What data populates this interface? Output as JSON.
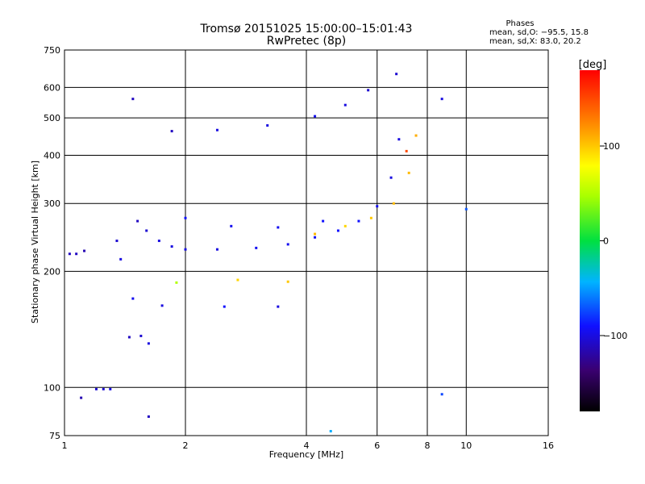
{
  "chart_data": {
    "type": "scatter",
    "title": "Tromsø 20151025 15:00:00–15:01:43",
    "subtitle": "RwPretec (8p)",
    "xlabel": "Frequency [MHz]",
    "ylabel": "Stationary phase Virtual Height [km]",
    "x_scale": "log",
    "y_scale": "log",
    "xlim": [
      1,
      16
    ],
    "ylim": [
      75,
      750
    ],
    "x_ticks": [
      1,
      2,
      4,
      6,
      8,
      10,
      16
    ],
    "x_tick_labels": [
      "1",
      "2",
      "4",
      "6",
      "8",
      "10",
      "16"
    ],
    "x_gridlines": [
      2,
      4,
      6,
      8,
      10
    ],
    "y_ticks": [
      75,
      100,
      200,
      300,
      400,
      500,
      600,
      750
    ],
    "y_tick_labels": [
      "75",
      "100",
      "200",
      "300",
      "400",
      "500",
      "600",
      "750"
    ],
    "y_gridlines": [
      100,
      200,
      300,
      400,
      500,
      600
    ],
    "grid": true,
    "stats": {
      "heading": "Phases",
      "line_o": "mean, sd,O: −95.5, 15.8",
      "line_x": "mean, sd,X:  83.0, 20.2"
    },
    "colorbar": {
      "label": "[deg]",
      "range": [
        -180,
        180
      ],
      "ticks": [
        100,
        0,
        -100
      ],
      "tick_labels": [
        "100",
        "0",
        "−100"
      ],
      "colormap": "rainbow"
    },
    "series": [
      {
        "values": [
          {
            "x": 1.03,
            "y": 222,
            "p": -110
          },
          {
            "x": 1.07,
            "y": 222,
            "p": -110
          },
          {
            "x": 1.12,
            "y": 226,
            "p": -115
          },
          {
            "x": 1.2,
            "y": 99,
            "p": -105
          },
          {
            "x": 1.25,
            "y": 99,
            "p": -105
          },
          {
            "x": 1.3,
            "y": 99,
            "p": -100
          },
          {
            "x": 1.35,
            "y": 240,
            "p": -105
          },
          {
            "x": 1.38,
            "y": 215,
            "p": -100
          },
          {
            "x": 1.45,
            "y": 135,
            "p": -110
          },
          {
            "x": 1.55,
            "y": 136,
            "p": -105
          },
          {
            "x": 1.62,
            "y": 130,
            "p": -100
          },
          {
            "x": 1.48,
            "y": 170,
            "p": -95
          },
          {
            "x": 1.52,
            "y": 270,
            "p": -110
          },
          {
            "x": 1.6,
            "y": 255,
            "p": -105
          },
          {
            "x": 1.72,
            "y": 240,
            "p": -100
          },
          {
            "x": 1.85,
            "y": 232,
            "p": -100
          },
          {
            "x": 2.0,
            "y": 228,
            "p": -98
          },
          {
            "x": 2.4,
            "y": 228,
            "p": -100
          },
          {
            "x": 3.0,
            "y": 230,
            "p": -95
          },
          {
            "x": 3.6,
            "y": 235,
            "p": -95
          },
          {
            "x": 4.2,
            "y": 245,
            "p": -95
          },
          {
            "x": 4.8,
            "y": 255,
            "p": -90
          },
          {
            "x": 5.4,
            "y": 270,
            "p": -90
          },
          {
            "x": 6.0,
            "y": 295,
            "p": -95
          },
          {
            "x": 6.5,
            "y": 350,
            "p": -100
          },
          {
            "x": 6.8,
            "y": 440,
            "p": -100
          },
          {
            "x": 2.0,
            "y": 275,
            "p": -90
          },
          {
            "x": 2.6,
            "y": 262,
            "p": -95
          },
          {
            "x": 3.4,
            "y": 260,
            "p": -95
          },
          {
            "x": 4.4,
            "y": 270,
            "p": -90
          },
          {
            "x": 1.85,
            "y": 462,
            "p": -110
          },
          {
            "x": 2.4,
            "y": 465,
            "p": -100
          },
          {
            "x": 3.2,
            "y": 478,
            "p": -100
          },
          {
            "x": 4.2,
            "y": 505,
            "p": -95
          },
          {
            "x": 5.0,
            "y": 540,
            "p": -100
          },
          {
            "x": 5.7,
            "y": 590,
            "p": -105
          },
          {
            "x": 1.75,
            "y": 163,
            "p": -100
          },
          {
            "x": 2.5,
            "y": 162,
            "p": -90
          },
          {
            "x": 3.4,
            "y": 162,
            "p": -100
          },
          {
            "x": 1.9,
            "y": 187,
            "p": 50
          },
          {
            "x": 2.7,
            "y": 190,
            "p": 95
          },
          {
            "x": 3.6,
            "y": 188,
            "p": 100
          },
          {
            "x": 4.2,
            "y": 250,
            "p": 105
          },
          {
            "x": 5.0,
            "y": 262,
            "p": 95
          },
          {
            "x": 5.8,
            "y": 275,
            "p": 100
          },
          {
            "x": 6.6,
            "y": 300,
            "p": 105
          },
          {
            "x": 7.2,
            "y": 360,
            "p": 105
          },
          {
            "x": 7.5,
            "y": 450,
            "p": 110
          },
          {
            "x": 7.1,
            "y": 410,
            "p": 150
          },
          {
            "x": 1.48,
            "y": 560,
            "p": -110
          },
          {
            "x": 6.7,
            "y": 650,
            "p": -105
          },
          {
            "x": 8.7,
            "y": 560,
            "p": -100
          },
          {
            "x": 10.0,
            "y": 290,
            "p": -70
          },
          {
            "x": 8.7,
            "y": 96,
            "p": -75
          },
          {
            "x": 4.6,
            "y": 77,
            "p": -45
          },
          {
            "x": 1.1,
            "y": 94,
            "p": -115
          },
          {
            "x": 1.62,
            "y": 84,
            "p": -110
          }
        ]
      }
    ]
  }
}
